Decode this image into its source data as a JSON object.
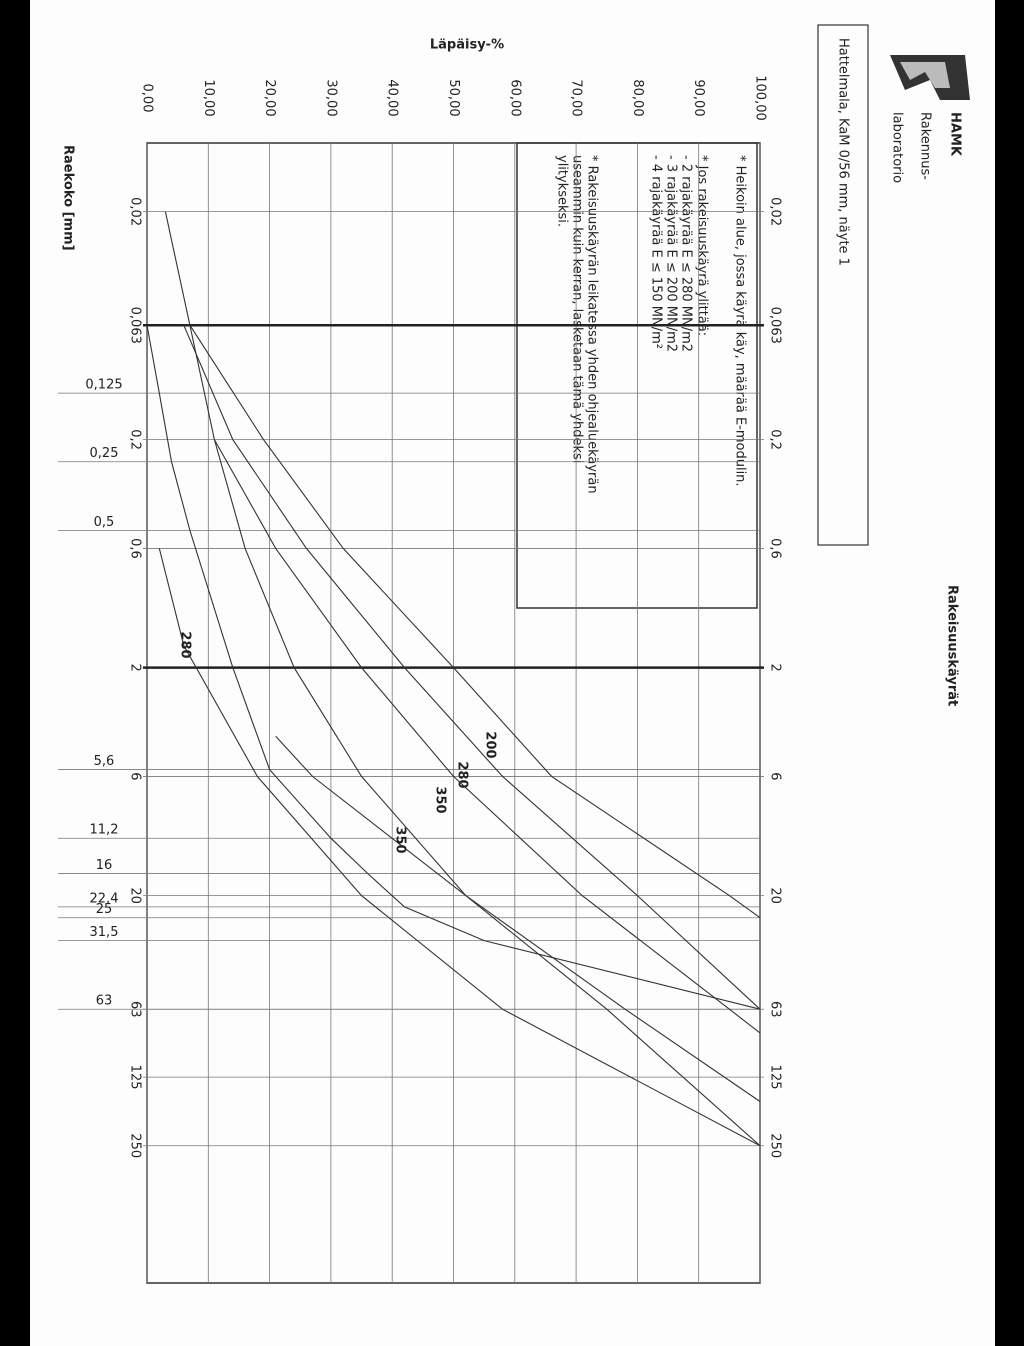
{
  "header": {
    "logo": "HAMK",
    "unit_line1": "Rakennus-",
    "unit_line2": "laboratorio",
    "sample": "Hattelmala, KaM 0/56 mm, näyte 1"
  },
  "notes": [
    "* Heikoin alue, jossa käyrä käy, määrää E-modulin.",
    "* Jos rakeisuuskäyrä ylittää:",
    "- 2 rajakäyrää E ≤ 280 MN/m2",
    "- 3 rajakäyrää E ≤ 200 MN/m2",
    "- 4 rajakäyrää E ≤ 150 MN/m²",
    "* Rakeisuuskäyrän leikatessa yhden ohjealuekäyrän",
    "useammin kuin kerran, lasketaan tämä yhdeksi",
    "ylitykseksi."
  ],
  "chart_data": {
    "type": "line",
    "title": "Rakeisuuskäyrät",
    "y_label": "Läpäisy-%",
    "x_label": "Raekoko [mm]",
    "log_x": true,
    "grid": true,
    "xlim": [
      0.01,
      1000
    ],
    "ylim": [
      0,
      100
    ],
    "xticks": [
      {
        "value": 0.02,
        "label": "0,02"
      },
      {
        "value": 0.063,
        "label": "0,063"
      },
      {
        "value": 0.2,
        "label": "0,2"
      },
      {
        "value": 0.6,
        "label": "0,6"
      },
      2,
      6,
      20,
      63,
      125,
      250
    ],
    "sieves": [
      {
        "value": 0.125,
        "label": "0,125"
      },
      {
        "value": 0.25,
        "label": "0,25"
      },
      {
        "value": 0.5,
        "label": "0,5"
      },
      {
        "value": 5.6,
        "label": "5,6"
      },
      {
        "value": 11.2,
        "label": "11,2"
      },
      16,
      {
        "value": 22.4,
        "label": "22,4"
      },
      25,
      {
        "value": 31.5,
        "label": "31,5"
      },
      63
    ],
    "yticks": [
      {
        "value": 0,
        "label": "0,00"
      },
      {
        "value": 10,
        "label": "10,00"
      },
      {
        "value": 20,
        "label": "20,00"
      },
      {
        "value": 30,
        "label": "30,00"
      },
      {
        "value": 40,
        "label": "40,00"
      },
      {
        "value": 50,
        "label": "50,00"
      },
      {
        "value": 60,
        "label": "60,00"
      },
      {
        "value": 70,
        "label": "70,00"
      },
      {
        "value": 80,
        "label": "80,00"
      },
      {
        "value": 90,
        "label": "90,00"
      },
      {
        "value": 100,
        "label": "100,00"
      }
    ],
    "series": [
      {
        "name": "200",
        "color": "#333333",
        "x": [
          0.063,
          0.2,
          0.6,
          2,
          6,
          20,
          25
        ],
        "values": [
          7,
          19,
          32,
          50,
          66,
          95,
          100
        ]
      },
      {
        "name": "280",
        "color": "#333333",
        "x": [
          0.063,
          0.2,
          0.6,
          2,
          6,
          20,
          63
        ],
        "values": [
          6,
          14,
          26,
          42,
          58,
          80,
          100
        ]
      },
      {
        "name": "350",
        "color": "#333333",
        "x": [
          0.2,
          0.6,
          2,
          6,
          20,
          63,
          80
        ],
        "values": [
          11,
          21,
          35,
          50,
          71,
          95,
          100
        ]
      },
      {
        "name": "350",
        "color": "#333333",
        "x": [
          4,
          6,
          20,
          63,
          160
        ],
        "values": [
          21,
          27,
          52,
          78,
          100
        ]
      },
      {
        "name": "280",
        "color": "#333333",
        "x": [
          0.6,
          1.6,
          6,
          20,
          63,
          250
        ],
        "values": [
          2,
          6,
          18,
          35,
          58,
          100
        ]
      },
      {
        "color": "#333333",
        "x": [
          0.02,
          0.063,
          0.2,
          0.6,
          2,
          6,
          20,
          63,
          250
        ],
        "values": [
          3,
          7,
          11,
          16,
          24,
          35,
          52,
          75,
          100
        ]
      },
      {
        "color": "#111111",
        "x": [
          0.063,
          0.125,
          0.25,
          0.5,
          2,
          5.6,
          11.2,
          16,
          22.4,
          31.5,
          63
        ],
        "values": [
          0,
          2,
          4,
          7,
          14,
          20,
          30,
          36,
          42,
          55,
          100
        ]
      }
    ]
  }
}
